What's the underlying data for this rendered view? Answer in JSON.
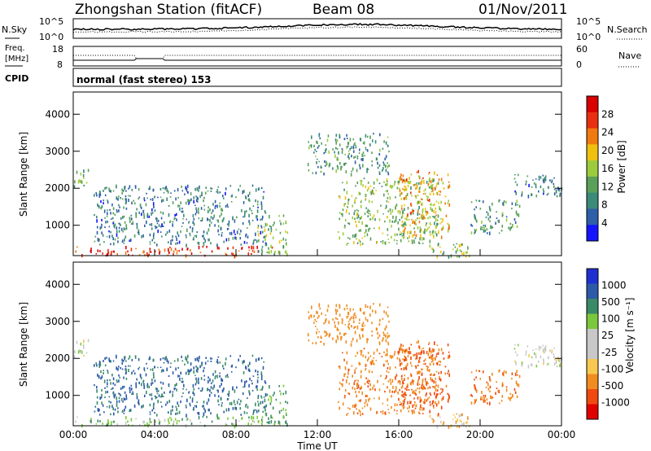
{
  "header": {
    "station": "Zhongshan Station (fitACF)",
    "beam": "Beam 08",
    "date": "01/Nov/2011"
  },
  "top_panels": {
    "nsky_label": "N.Sky",
    "nsearch_label": "N.Search",
    "freq_label_1": "Freq.",
    "freq_label_2": "[MHz]",
    "nave_label": "Nave",
    "cpid_label": "CPID",
    "cpid_text": "normal (fast stereo) 153",
    "noise_ticks": [
      "10^5",
      "10^0"
    ],
    "freq_ticks": [
      "18",
      "8"
    ],
    "nave_ticks": [
      "60",
      "0"
    ]
  },
  "colors": {
    "power_scale": [
      "#1414ff",
      "#2e5fa8",
      "#3c8a78",
      "#5aa05a",
      "#9ccc3c",
      "#f0c010",
      "#f07a10",
      "#e83010",
      "#d80000"
    ],
    "velocity_scale": [
      "#e00000",
      "#f04a10",
      "#f08c20",
      "#f8c850",
      "#c8c8c8",
      "#c8c8c8",
      "#7cc83c",
      "#3a8a68",
      "#2c5aa8",
      "#2030d0"
    ]
  },
  "chart_data": [
    {
      "type": "heatmap",
      "name": "Power",
      "ylabel": "Slant Range [km]",
      "colorbar_label": "Power [dB]",
      "colorbar_ticks": [
        "4",
        "8",
        "12",
        "16",
        "20",
        "24",
        "28"
      ],
      "ylim": [
        180,
        4600
      ],
      "yticks": [
        "1000",
        "2000",
        "3000",
        "4000"
      ],
      "xticks": [
        "00:00",
        "04:00",
        "08:00",
        "12:00",
        "16:00",
        "20:00",
        "00:00"
      ],
      "xlim_hours": [
        0,
        24
      ],
      "echo_regions": [
        {
          "t_start": 0.0,
          "t_end": 10.0,
          "range_start": 200,
          "range_end": 450,
          "power_db": 26
        },
        {
          "t_start": 0.0,
          "t_end": 0.8,
          "range_start": 2050,
          "range_end": 2550,
          "power_db": 12
        },
        {
          "t_start": 1.0,
          "t_end": 9.5,
          "range_start": 500,
          "range_end": 2100,
          "power_db": 8
        },
        {
          "t_start": 9.0,
          "t_end": 10.5,
          "range_start": 250,
          "range_end": 1300,
          "power_db": 14
        },
        {
          "t_start": 11.5,
          "t_end": 15.5,
          "range_start": 2400,
          "range_end": 3500,
          "power_db": 10
        },
        {
          "t_start": 13.0,
          "t_end": 18.0,
          "range_start": 500,
          "range_end": 2300,
          "power_db": 14
        },
        {
          "t_start": 16.0,
          "t_end": 18.5,
          "range_start": 700,
          "range_end": 2500,
          "power_db": 20
        },
        {
          "t_start": 17.5,
          "t_end": 19.5,
          "range_start": 150,
          "range_end": 550,
          "power_db": 14
        },
        {
          "t_start": 19.5,
          "t_end": 22.0,
          "range_start": 800,
          "range_end": 1700,
          "power_db": 10
        },
        {
          "t_start": 21.5,
          "t_end": 24.0,
          "range_start": 1800,
          "range_end": 2400,
          "power_db": 8
        }
      ]
    },
    {
      "type": "heatmap",
      "name": "Velocity",
      "ylabel": "Slant Range [km]",
      "xlabel": "Time UT",
      "colorbar_label": "Velocity [m s⁻¹]",
      "colorbar_ticks": [
        "1000",
        "500",
        "100",
        "25",
        "-25",
        "-100",
        "-500",
        "-1000"
      ],
      "ylim": [
        180,
        4600
      ],
      "yticks": [
        "1000",
        "2000",
        "3000",
        "4000"
      ],
      "xticks": [
        "00:00",
        "04:00",
        "08:00",
        "12:00",
        "16:00",
        "20:00",
        "00:00"
      ],
      "xlim_hours": [
        0,
        24
      ],
      "echo_regions": [
        {
          "t_start": 0.0,
          "t_end": 10.0,
          "range_start": 200,
          "range_end": 450,
          "velocity": 60
        },
        {
          "t_start": 0.0,
          "t_end": 0.8,
          "range_start": 2050,
          "range_end": 2550,
          "velocity": 0
        },
        {
          "t_start": 1.0,
          "t_end": 9.5,
          "range_start": 500,
          "range_end": 2100,
          "velocity": 600
        },
        {
          "t_start": 9.0,
          "t_end": 10.5,
          "range_start": 250,
          "range_end": 1300,
          "velocity": 150
        },
        {
          "t_start": 11.5,
          "t_end": 15.5,
          "range_start": 2400,
          "range_end": 3500,
          "velocity": -300
        },
        {
          "t_start": 13.0,
          "t_end": 18.0,
          "range_start": 500,
          "range_end": 2300,
          "velocity": -400
        },
        {
          "t_start": 16.0,
          "t_end": 18.5,
          "range_start": 700,
          "range_end": 2500,
          "velocity": -600
        },
        {
          "t_start": 17.5,
          "t_end": 19.5,
          "range_start": 150,
          "range_end": 550,
          "velocity": -80
        },
        {
          "t_start": 19.5,
          "t_end": 22.0,
          "range_start": 800,
          "range_end": 1700,
          "velocity": -500
        },
        {
          "t_start": 21.5,
          "t_end": 24.0,
          "range_start": 1800,
          "range_end": 2400,
          "velocity": 0
        }
      ]
    }
  ]
}
